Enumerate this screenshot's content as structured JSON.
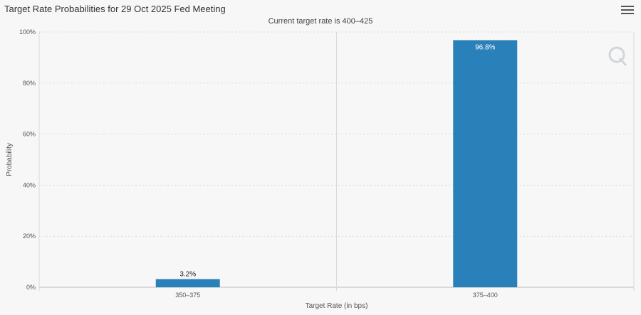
{
  "header": {
    "title": "Target Rate Probabilities for 29 Oct 2025 Fed Meeting",
    "subtitle": "Current target rate is 400–425",
    "menu_icon": "hamburger-menu-icon"
  },
  "colors": {
    "bar": "#2a80b9",
    "grid": "#d9d9d9",
    "background": "#f7f7f7",
    "watermark": "#cfd6dc"
  },
  "watermark_icon": "q-logo-icon",
  "chart_data": {
    "type": "bar",
    "categories": [
      "350–375",
      "375–400"
    ],
    "values": [
      3.2,
      96.8
    ],
    "data_labels": [
      "3.2%",
      "96.8%"
    ],
    "title": "Target Rate Probabilities for 29 Oct 2025 Fed Meeting",
    "subtitle": "Current target rate is 400–425",
    "xlabel": "Target Rate (in bps)",
    "ylabel": "Probability",
    "ylim": [
      0,
      100
    ],
    "yticks": [
      "0%",
      "20%",
      "40%",
      "60%",
      "80%",
      "100%"
    ],
    "grid": true,
    "legend": "none"
  }
}
